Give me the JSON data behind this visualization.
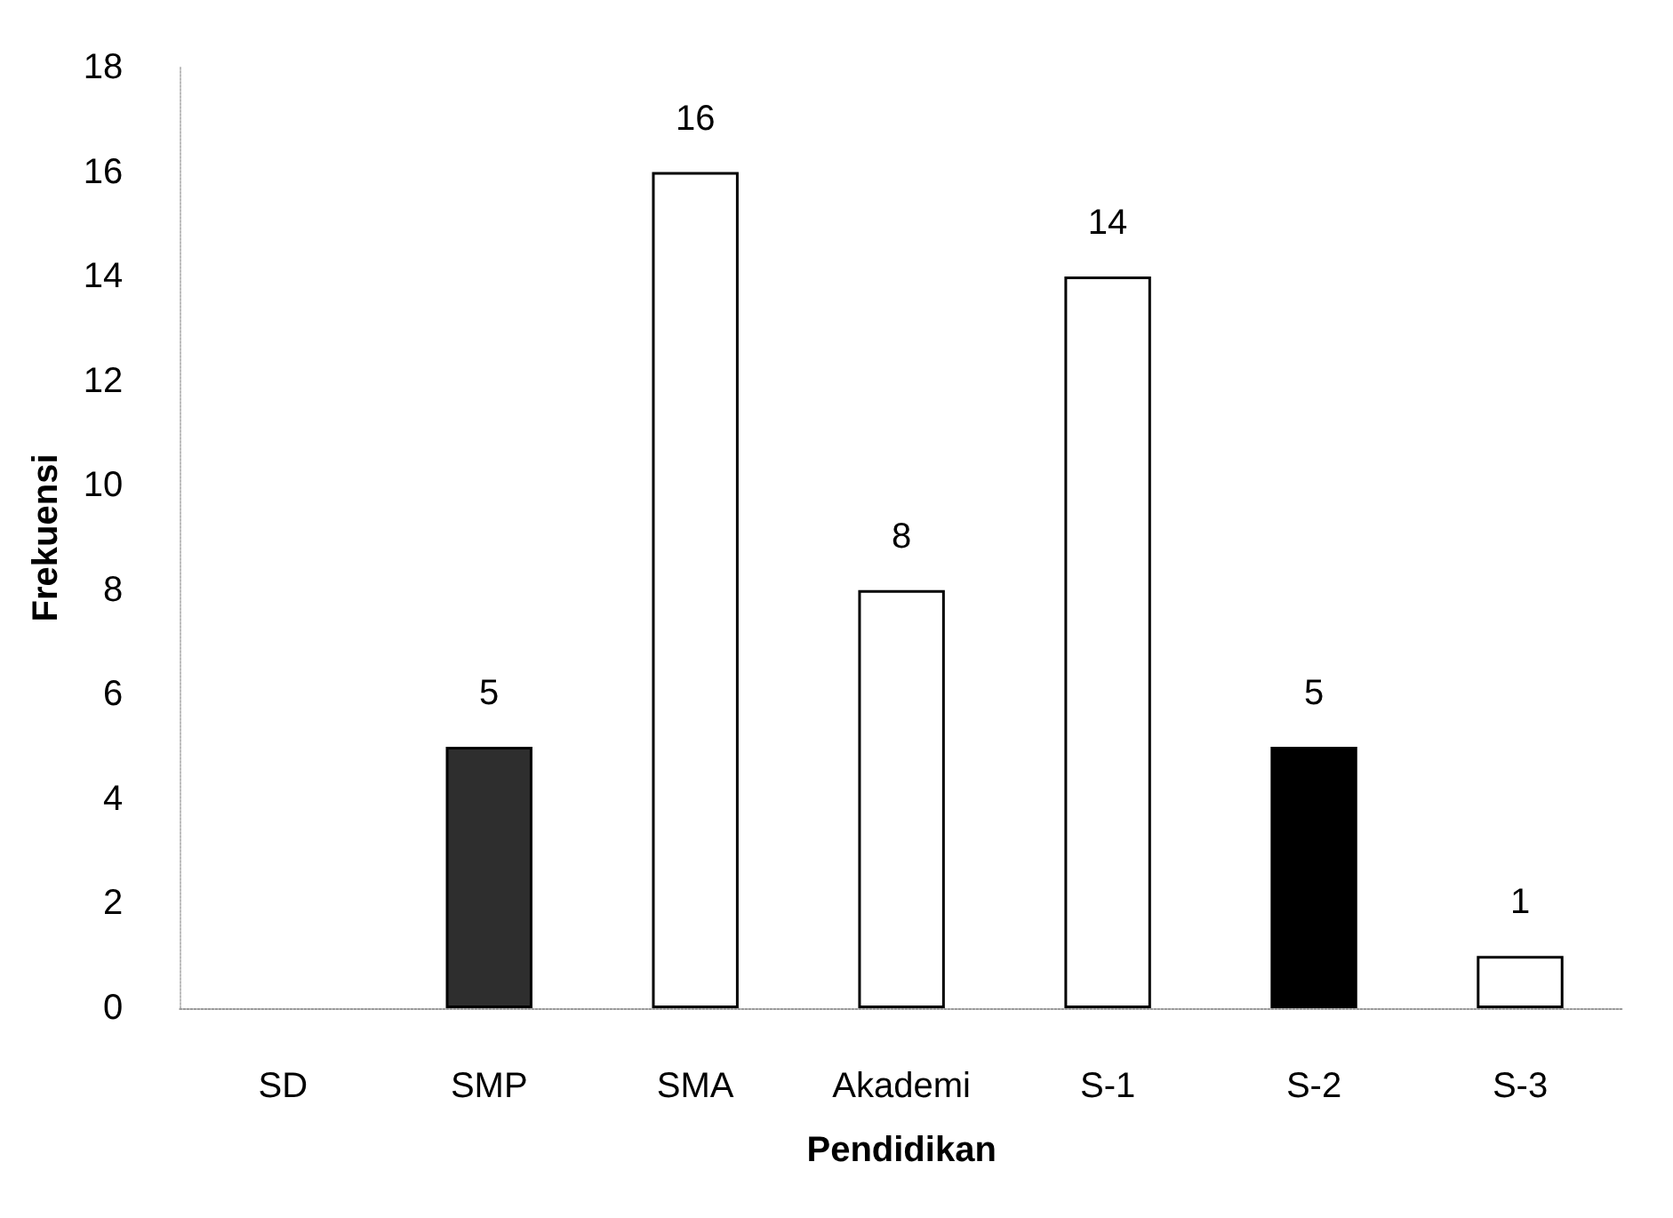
{
  "chart_data": {
    "type": "bar",
    "xlabel": "Pendidikan",
    "ylabel": "Frekuensi",
    "categories": [
      "SD",
      "SMP",
      "SMA",
      "Akademi",
      "S-1",
      "S-2",
      "S-3"
    ],
    "values": [
      0,
      5,
      16,
      8,
      14,
      5,
      1
    ],
    "colors": [
      "#ffffff",
      "#2e2e2e",
      "#ffffff",
      "#ffffff",
      "#ffffff",
      "#000000",
      "#ffffff"
    ],
    "value_labels": [
      null,
      "5",
      "16",
      "8",
      "14",
      "5",
      "1"
    ],
    "ylim": [
      0,
      18
    ],
    "yticks": [
      0,
      2,
      4,
      6,
      8,
      10,
      12,
      14,
      16,
      18
    ],
    "grid": false
  }
}
